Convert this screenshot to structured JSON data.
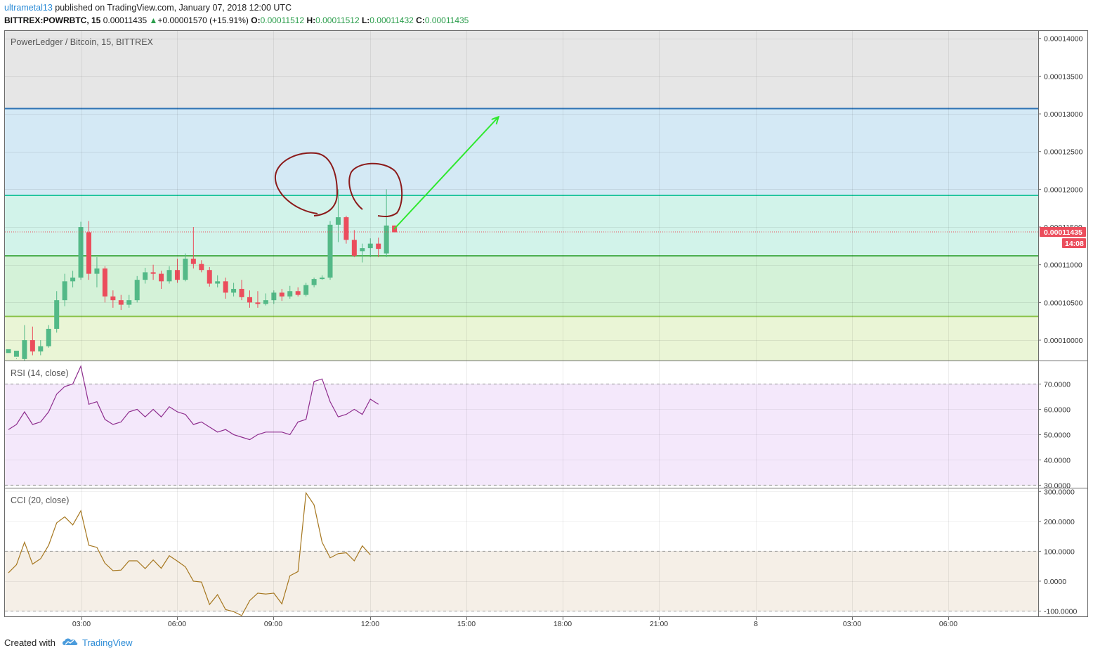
{
  "header": {
    "author": "ultrametal13",
    "published_text": "published on TradingView.com, January 07, 2018 12:00 UTC",
    "symbol": "BITTREX:POWRBTC, 15",
    "last": "0.00011435",
    "up_arrow": "▲",
    "change": "+0.00001570 (+15.91%)",
    "o_label": "O:",
    "o_val": "0.00011512",
    "h_label": "H:",
    "h_val": "0.00011512",
    "l_label": "L:",
    "l_val": "0.00011432",
    "c_label": "C:",
    "c_val": "0.00011435"
  },
  "footer": {
    "created_with": "Created with",
    "brand": "TradingView",
    "logo_icon": "tradingview-cloud-icon"
  },
  "colors": {
    "up": "#53b987",
    "down": "#eb4d5c",
    "fib_blue": "#2e74b5",
    "fib_teal": "#26c6a0",
    "fib_green": "#4caf50",
    "fib_lime": "#8bc34a",
    "rsi_line": "#8e2d8e",
    "cci_line": "#a6771f",
    "annotation_circle": "#8b1a1a",
    "annotation_arrow": "#2ee82e"
  },
  "chart_data": [
    {
      "type": "candlestick",
      "title": "PowerLedger / Bitcoin, 15, BITTREX",
      "x_tick_labels": [
        "03:00",
        "06:00",
        "09:00",
        "12:00",
        "15:00",
        "18:00",
        "21:00",
        "8",
        "03:00",
        "06:00"
      ],
      "y_tick_labels": [
        "0.00014000",
        "0.00013500",
        "0.00013000",
        "0.00012500",
        "0.00012000",
        "0.00011500",
        "0.00011000",
        "0.00010500",
        "0.00010000"
      ],
      "ylim": [
        9.73e-05,
        0.000141
      ],
      "last_price_label": "0.00011435",
      "countdown_label": "14:08",
      "last_price": 0.00011435,
      "horizontal_levels": [
        0.0001307,
        0.0001192,
        0.00011118,
        0.00010315
      ],
      "candles": [
        [
          9.83e-05,
          9.88e-05,
          9.73e-05,
          9.7e-05
        ],
        [
          9.78e-05,
          9.86e-05,
          9.76e-05,
          9.75e-05
        ],
        [
          9.75e-05,
          0.0001,
          0.000102,
          9.72e-05
        ],
        [
          0.0001,
          9.85e-05,
          0.0001018,
          9.8e-05
        ],
        [
          9.85e-05,
          9.92e-05,
          0.0001,
          9.8e-05
        ],
        [
          9.92e-05,
          0.0001015,
          0.000102,
          9.9e-05
        ],
        [
          0.0001015,
          0.0001053,
          0.0001065,
          0.000101
        ],
        [
          0.0001053,
          0.0001078,
          0.0001088,
          0.0001045
        ],
        [
          0.0001078,
          0.0001083,
          0.0001092,
          0.000107
        ],
        [
          0.0001083,
          0.000115,
          0.0001157,
          0.000108
        ],
        [
          0.0001143,
          0.0001088,
          0.0001158,
          0.000108
        ],
        [
          0.0001088,
          0.0001095,
          0.000111,
          0.000107
        ],
        [
          0.0001095,
          0.0001058,
          0.0001098,
          0.000105
        ],
        [
          0.0001058,
          0.0001053,
          0.0001066,
          0.0001043
        ],
        [
          0.0001053,
          0.0001047,
          0.000106,
          0.000104
        ],
        [
          0.0001047,
          0.0001053,
          0.000106,
          0.0001043
        ],
        [
          0.0001053,
          0.000108,
          0.0001085,
          0.000105
        ],
        [
          0.000108,
          0.000109,
          0.0001096,
          0.0001075
        ],
        [
          0.000109,
          0.0001088,
          0.00011,
          0.000108
        ],
        [
          0.0001088,
          0.0001078,
          0.0001092,
          0.0001068
        ],
        [
          0.0001078,
          0.0001093,
          0.0001098,
          0.0001075
        ],
        [
          0.0001093,
          0.000108,
          0.0001108,
          0.0001076
        ],
        [
          0.000108,
          0.0001108,
          0.0001115,
          0.0001078
        ],
        [
          0.0001108,
          0.0001101,
          0.000115,
          0.0001095
        ],
        [
          0.0001101,
          0.0001093,
          0.0001106,
          0.000109
        ],
        [
          0.0001093,
          0.0001075,
          0.0001097,
          0.0001071
        ],
        [
          0.0001075,
          0.0001078,
          0.0001086,
          0.000107
        ],
        [
          0.0001078,
          0.0001063,
          0.0001083,
          0.0001055
        ],
        [
          0.0001063,
          0.0001068,
          0.0001076,
          0.0001058
        ],
        [
          0.0001068,
          0.0001057,
          0.000108,
          0.0001053
        ],
        [
          0.0001057,
          0.000105,
          0.0001066,
          0.0001043
        ],
        [
          0.000105,
          0.0001048,
          0.0001065,
          0.0001043
        ],
        [
          0.0001048,
          0.0001053,
          0.0001062,
          0.0001046
        ],
        [
          0.0001053,
          0.0001063,
          0.0001066,
          0.0001048
        ],
        [
          0.0001063,
          0.0001058,
          0.0001068,
          0.0001052
        ],
        [
          0.0001058,
          0.0001065,
          0.0001072,
          0.0001055
        ],
        [
          0.0001065,
          0.000106,
          0.000107,
          0.0001058
        ],
        [
          0.000106,
          0.0001073,
          0.0001076,
          0.0001058
        ],
        [
          0.0001073,
          0.0001081,
          0.0001083,
          0.000107
        ],
        [
          0.0001081,
          0.0001083,
          0.0001086,
          0.000108
        ],
        [
          0.0001083,
          0.0001153,
          0.0001158,
          0.000108
        ],
        [
          0.0001153,
          0.0001163,
          0.00012,
          0.000113
        ],
        [
          0.0001163,
          0.0001133,
          0.0001165,
          0.0001128
        ],
        [
          0.0001133,
          0.0001112,
          0.0001146,
          0.000111
        ],
        [
          0.0001118,
          0.0001122,
          0.0001128,
          0.0001103
        ],
        [
          0.0001122,
          0.0001128,
          0.0001135,
          0.000111
        ],
        [
          0.0001128,
          0.0001121,
          0.0001136,
          0.000111
        ],
        [
          0.0001115,
          0.0001152,
          0.00012,
          0.000111
        ],
        [
          0.0001152,
          0.0001143,
          0.0001152,
          0.0001143
        ]
      ]
    },
    {
      "type": "line",
      "title": "RSI (14, close)",
      "y_tick_labels": [
        "70.0000",
        "60.0000",
        "50.0000",
        "40.0000",
        "30.0000"
      ],
      "ylim": [
        29,
        79
      ],
      "dashed_levels": [
        70,
        30
      ],
      "values": [
        52,
        54,
        59,
        54,
        55,
        59,
        66,
        69,
        70,
        77,
        62,
        63,
        56,
        54,
        55,
        59,
        60,
        57,
        60,
        57,
        61,
        59,
        58,
        54,
        55,
        53,
        51,
        52,
        50,
        49,
        48,
        50,
        51,
        51,
        51,
        50,
        55,
        56,
        71,
        72,
        63,
        57,
        58,
        60,
        58,
        64,
        62
      ]
    },
    {
      "type": "line",
      "title": "CCI (20, close)",
      "y_tick_labels": [
        "300.0000",
        "200.0000",
        "100.0000",
        "0.0000",
        "-100.0000"
      ],
      "ylim": [
        -120,
        310
      ],
      "dashed_levels": [
        100,
        -100
      ],
      "values": [
        28,
        55,
        130,
        57,
        75,
        120,
        195,
        215,
        188,
        235,
        120,
        113,
        60,
        35,
        37,
        68,
        68,
        42,
        71,
        43,
        85,
        67,
        48,
        0,
        -3,
        -78,
        -45,
        -95,
        -102,
        -115,
        -65,
        -40,
        -43,
        -40,
        -76,
        18,
        32,
        295,
        255,
        130,
        78,
        92,
        95,
        68,
        118,
        88
      ]
    }
  ]
}
